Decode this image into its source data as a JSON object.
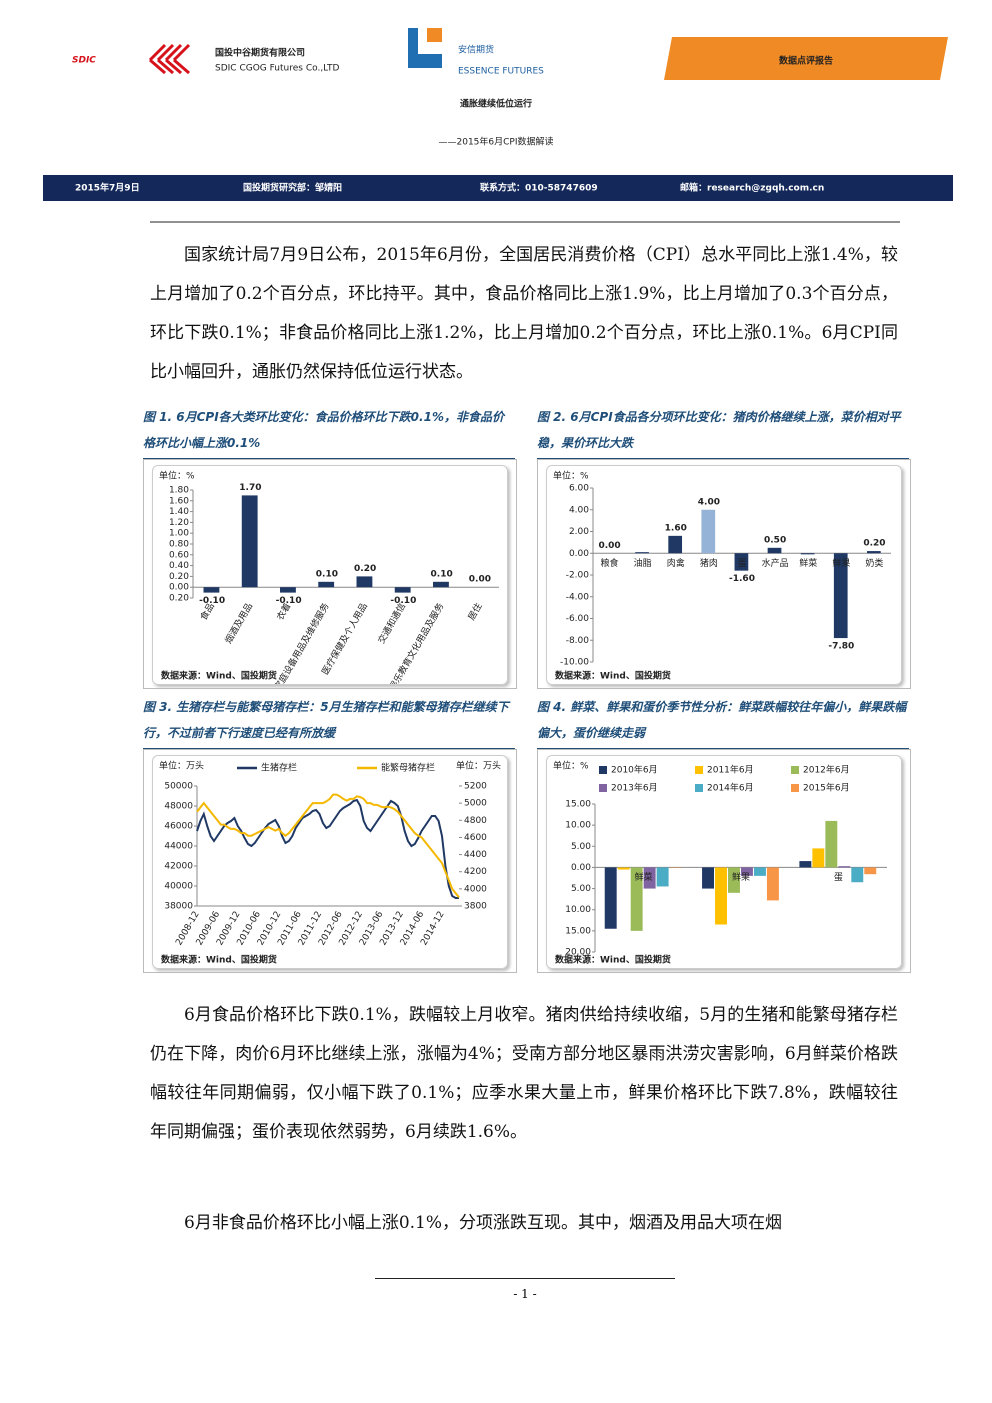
{
  "header": {
    "sdic": "SDIC",
    "company_cn": "国投中谷期货有限公司",
    "company_en": "SDIC CGOG Futures Co.,LTD",
    "essence_cn": "安信期货",
    "essence_en": "ESSENCE FUTURES",
    "report_type": "数据点评报告"
  },
  "title": "通胀继续低位运行",
  "subtitle": "——2015年6月CPI数据解读",
  "info": {
    "date": "2015年7月9日",
    "author": "国投期货研究部：邹婧阳",
    "contact": "联系方式：010-58747609",
    "email": "邮箱：research@zgqh.com.cn"
  },
  "paragraphs": [
    "国家统计局7月9日公布，2015年6月份，全国居民消费价格（CPI）总水平同比上涨1.4%，较上月增加了0.2个百分点，环比持平。其中，食品价格同比上涨1.9%，比上月增加了0.3个百分点，环比下跌0.1%；非食品价格同比上涨1.2%，比上月增加0.2个百分点，环比上涨0.1%。6月CPI同比小幅回升，通胀仍然保持低位运行状态。",
    "6月食品价格环比下跌0.1%，跌幅较上月收窄。猪肉供给持续收缩，5月的生猪和能繁母猪存栏仍在下降，肉价6月环比继续上涨，涨幅为4%；受南方部分地区暴雨洪涝灾害影响，6月鲜菜价格跌幅较往年同期偏弱，仅小幅下跌了0.1%；应季水果大量上市，鲜果价格环比下跌7.8%，跌幅较往年同期偏强；蛋价表现依然弱势，6月续跌1.6%。",
    "6月非食品价格环比小幅上涨0.1%，分项涨跌互现。其中，烟酒及用品大项在烟"
  ],
  "footer": {
    "page": "- 1 -"
  },
  "chart_data": [
    {
      "type": "bar",
      "title": "图 1. 6月CPI各大类环比变化：食品价格环比下跌0.1%，非食品价格环比小幅上涨0.1%",
      "unit": "单位：%",
      "source": "数据来源：Wind、国投期货",
      "categories": [
        "食品",
        "烟酒及用品",
        "衣着",
        "家庭设备用品及维修服务",
        "医疗保健及个人用品",
        "交通和通信",
        "娱乐教育文化用品及服务",
        "居住"
      ],
      "values": [
        -0.1,
        1.7,
        -0.1,
        0.1,
        0.2,
        -0.1,
        0.1,
        0
      ],
      "value_labels": [
        "-0.10",
        "1.70",
        "-0.10",
        "0.10",
        "0.20",
        "-0.10",
        "0.10",
        "0.00"
      ],
      "color": "#1f3864",
      "ylim": [
        -0.2,
        1.8
      ],
      "yticks": [
        {
          "value": -0.2,
          "label": "0.20"
        },
        {
          "value": 0,
          "label": "0.00"
        },
        {
          "value": 0.2,
          "label": "0.20"
        },
        {
          "value": 0.4,
          "label": "0.40"
        },
        {
          "value": 0.6,
          "label": "0.60"
        },
        {
          "value": 0.8,
          "label": "0.80"
        },
        {
          "value": 1,
          "label": "1.00"
        },
        {
          "value": 1.2,
          "label": "1.20"
        },
        {
          "value": 1.4,
          "label": "1.40"
        },
        {
          "value": 1.6,
          "label": "1.60"
        },
        {
          "value": 1.8,
          "label": "1.80"
        }
      ],
      "grid": false
    },
    {
      "type": "bar",
      "title": "图 2. 6月CPI食品各分项环比变化：猪肉价格继续上涨，菜价相对平稳，果价环比大跌",
      "unit": "单位：%",
      "source": "数据来源：Wind、国投期货",
      "categories": [
        "粮食",
        "油脂",
        "肉禽",
        "猪肉",
        "蛋",
        "水产品",
        "鲜菜",
        "鲜果",
        "奶类"
      ],
      "values": [
        0,
        0.1,
        1.6,
        4,
        -1.6,
        0.5,
        -0.1,
        -7.8,
        0.2
      ],
      "value_labels": [
        "0.00",
        null,
        "1.60",
        "4.00",
        "-1.60",
        "0.50",
        null,
        "-7.80",
        "0.20"
      ],
      "colors": [
        "#1f3864",
        "#1f3864",
        "#1f3864",
        "#95b3d7",
        "#1f3864",
        "#1f3864",
        "#1f3864",
        "#1f3864",
        "#1f3864"
      ],
      "ylim": [
        -10,
        6
      ],
      "yticks": [
        {
          "value": -10,
          "label": "-10.00"
        },
        {
          "value": -8,
          "label": "-8.00"
        },
        {
          "value": -6,
          "label": "-6.00"
        },
        {
          "value": -4,
          "label": "-4.00"
        },
        {
          "value": -2,
          "label": "-2.00"
        },
        {
          "value": 0,
          "label": "0.00"
        },
        {
          "value": 2,
          "label": "2.00"
        },
        {
          "value": 4,
          "label": "4.00"
        },
        {
          "value": 6,
          "label": "6.00"
        }
      ],
      "grid": false
    },
    {
      "type": "line",
      "title": "图 3. 生猪存栏与能繁母猪存栏：5月生猪存栏和能繁母猪存栏继续下行，不过前者下行速度已经有所放缓",
      "unit": "单位：万头",
      "unit2": "单位：万头",
      "source": "数据来源：Wind、国投期货",
      "categories": [
        "2008-12",
        null,
        null,
        null,
        null,
        null,
        "2009-06",
        null,
        null,
        null,
        null,
        null,
        "2009-12",
        null,
        null,
        null,
        null,
        null,
        "2010-06",
        null,
        null,
        null,
        null,
        null,
        "2010-12",
        null,
        null,
        null,
        null,
        null,
        "2011-06",
        null,
        null,
        null,
        null,
        null,
        "2011-12",
        null,
        null,
        null,
        null,
        null,
        "2012-06",
        null,
        null,
        null,
        null,
        null,
        "2012-12",
        null,
        null,
        null,
        null,
        null,
        "2013-06",
        null,
        null,
        null,
        null,
        null,
        "2013-12",
        null,
        null,
        null,
        null,
        null,
        "2014-06",
        null,
        null,
        null,
        null,
        null,
        "2014-12",
        null,
        null,
        null,
        null,
        null
      ],
      "series": [
        {
          "name": "生猪存栏",
          "color": "#1f3864",
          "values": [
            45500,
            46500,
            47200,
            46000,
            45000,
            44500,
            45000,
            45500,
            46000,
            46300,
            46500,
            46800,
            46000,
            45500,
            44800,
            44200,
            44000,
            44300,
            44800,
            45300,
            45800,
            46200,
            46400,
            46600,
            46000,
            45000,
            44300,
            44500,
            45000,
            45800,
            46300,
            46800,
            47000,
            47200,
            47500,
            47600,
            47200,
            46300,
            45800,
            46000,
            46500,
            47000,
            47500,
            47800,
            48000,
            48200,
            48500,
            48600,
            48000,
            46500,
            45800,
            45500,
            46000,
            46500,
            47000,
            47500,
            48000,
            48500,
            48300,
            48000,
            47000,
            45500,
            44500,
            44000,
            44200,
            44800,
            45500,
            46000,
            46500,
            47000,
            47000,
            46500,
            45000,
            42000,
            40000,
            39000,
            38800,
            38800
          ]
        },
        {
          "name": "能繁母猪存栏",
          "color": "#f5b800",
          "axis": "y2",
          "values": [
            4900,
            4950,
            5000,
            4950,
            4900,
            4850,
            4800,
            4750,
            4750,
            4720,
            4700,
            4700,
            4680,
            4650,
            4650,
            4620,
            4620,
            4640,
            4660,
            4680,
            4700,
            4720,
            4700,
            4680,
            4700,
            4650,
            4620,
            4650,
            4700,
            4750,
            4800,
            4850,
            4900,
            4950,
            5000,
            5000,
            5000,
            5000,
            5020,
            5050,
            5100,
            5100,
            5080,
            5050,
            5030,
            5050,
            5050,
            5080,
            5070,
            5050,
            5000,
            5000,
            4980,
            4980,
            4960,
            4950,
            4960,
            4950,
            4930,
            4900,
            4850,
            4800,
            4750,
            4700,
            4650,
            4620,
            4600,
            4550,
            4500,
            4450,
            4400,
            4350,
            4300,
            4200,
            4100,
            4000,
            3950,
            3900
          ]
        }
      ],
      "ylim": [
        38000,
        50000
      ],
      "yticks": [
        38000,
        40000,
        42000,
        44000,
        46000,
        48000,
        50000
      ],
      "y2lim": [
        3800,
        5200
      ],
      "y2ticks": [
        3800,
        4000,
        4200,
        4400,
        4600,
        4800,
        5000,
        5200
      ],
      "grid": false
    },
    {
      "type": "bar",
      "title": "图 4. 鲜菜、鲜果和蛋价季节性分析：鲜菜跌幅较往年偏小，鲜果跌幅偏大，蛋价继续走弱",
      "unit": "单位：%",
      "source": "数据来源：Wind、国投期货",
      "categories": [
        "鲜菜",
        "鲜果",
        "蛋"
      ],
      "series": [
        {
          "name": "2010年6月",
          "color": "#1f3864",
          "values": [
            -14.5,
            -5,
            1.5
          ]
        },
        {
          "name": "2011年6月",
          "color": "#ffc000",
          "values": [
            -0.5,
            -13.5,
            4.5
          ]
        },
        {
          "name": "2012年6月",
          "color": "#9bbb59",
          "values": [
            -15,
            -6,
            11
          ]
        },
        {
          "name": "2013年6月",
          "color": "#8064a2",
          "values": [
            -5,
            -2,
            0.3
          ]
        },
        {
          "name": "2014年6月",
          "color": "#4bacc6",
          "values": [
            -4.5,
            -2,
            -3.5
          ]
        },
        {
          "name": "2015年6月",
          "color": "#f79646",
          "values": [
            -0.1,
            -7.8,
            -1.6
          ]
        }
      ],
      "ylim": [
        -20,
        15
      ],
      "yticks": [
        {
          "value": -20,
          "label": "20.00"
        },
        {
          "value": -15,
          "label": "15.00"
        },
        {
          "value": -10,
          "label": "10.00"
        },
        {
          "value": -5,
          "label": "5.00"
        },
        {
          "value": 0,
          "label": "0.00"
        },
        {
          "value": 5,
          "label": "5.00"
        },
        {
          "value": 10,
          "label": "10.00"
        },
        {
          "value": 15,
          "label": "15.00"
        }
      ],
      "grid": false
    }
  ]
}
